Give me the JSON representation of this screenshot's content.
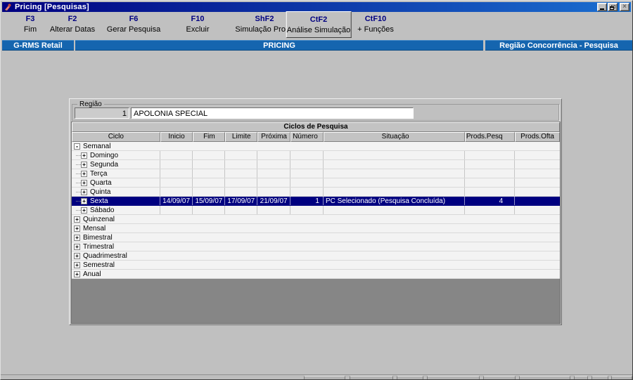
{
  "window": {
    "title": "Pricing [Pesquisas]"
  },
  "toolbar": {
    "items": [
      {
        "key": "F3",
        "label": "Fim"
      },
      {
        "key": "F2",
        "label": "Alterar Datas"
      },
      {
        "key": "F6",
        "label": "Gerar Pesquisa"
      },
      {
        "key": "F10",
        "label": "Excluir"
      },
      {
        "key": "ShF2",
        "label": "Simulação Prods"
      },
      {
        "key": "CtF2",
        "label": "Análise Simulação",
        "active": true
      },
      {
        "key": "CtF10",
        "label": "+ Funções"
      }
    ]
  },
  "header": {
    "app": "G-RMS Retail",
    "module": "PRICING",
    "screen": "Região Concorrência - Pesquisa"
  },
  "region": {
    "label": "Região",
    "code": "1",
    "name": "APOLONIA SPECIAL"
  },
  "table": {
    "title": "Ciclos de Pesquisa",
    "columns": [
      "Ciclo",
      "Inicio",
      "Fim",
      "Limite",
      "Próxima",
      "Número",
      "Situação",
      "Prods.Pesq",
      "Prods.Ofta"
    ],
    "rows": [
      {
        "label": "Semanal",
        "level": 0,
        "expander": "minus",
        "cells": null
      },
      {
        "label": "Domingo",
        "level": 1,
        "expander": "plus",
        "cells": [
          "",
          "",
          "",
          "",
          "",
          "",
          "",
          ""
        ]
      },
      {
        "label": "Segunda",
        "level": 1,
        "expander": "plus",
        "cells": [
          "",
          "",
          "",
          "",
          "",
          "",
          "",
          ""
        ]
      },
      {
        "label": "Terça",
        "level": 1,
        "expander": "plus",
        "cells": [
          "",
          "",
          "",
          "",
          "",
          "",
          "",
          ""
        ]
      },
      {
        "label": "Quarta",
        "level": 1,
        "expander": "plus",
        "cells": [
          "",
          "",
          "",
          "",
          "",
          "",
          "",
          ""
        ]
      },
      {
        "label": "Quinta",
        "level": 1,
        "expander": "plus",
        "cells": [
          "",
          "",
          "",
          "",
          "",
          "",
          "",
          ""
        ]
      },
      {
        "label": "Sexta",
        "level": 1,
        "expander": "plus",
        "selected": true,
        "cells": [
          "14/09/07",
          "15/09/07",
          "17/09/07",
          "21/09/07",
          "1",
          "PC Selecionado (Pesquisa Concluída)",
          "4",
          ""
        ]
      },
      {
        "label": "Sábado",
        "level": 1,
        "expander": "plus",
        "cells": [
          "",
          "",
          "",
          "",
          "",
          "",
          "",
          ""
        ]
      },
      {
        "label": "Quinzenal",
        "level": 0,
        "expander": "plus",
        "cells": null
      },
      {
        "label": "Mensal",
        "level": 0,
        "expander": "plus",
        "cells": null
      },
      {
        "label": "Bimestral",
        "level": 0,
        "expander": "plus",
        "cells": null
      },
      {
        "label": "Trimestral",
        "level": 0,
        "expander": "plus",
        "cells": null
      },
      {
        "label": "Quadrimestral",
        "level": 0,
        "expander": "plus",
        "cells": null
      },
      {
        "label": "Semestral",
        "level": 0,
        "expander": "plus",
        "cells": null
      },
      {
        "label": "Anual",
        "level": 0,
        "expander": "plus",
        "cells": null
      }
    ]
  },
  "colors": {
    "titlebar_start": "#000080",
    "titlebar_end": "#1b6fd0",
    "band_blue": "#1565af",
    "selection": "#000080",
    "panel_gray": "#c0c0c0",
    "filler_gray": "#868686"
  }
}
